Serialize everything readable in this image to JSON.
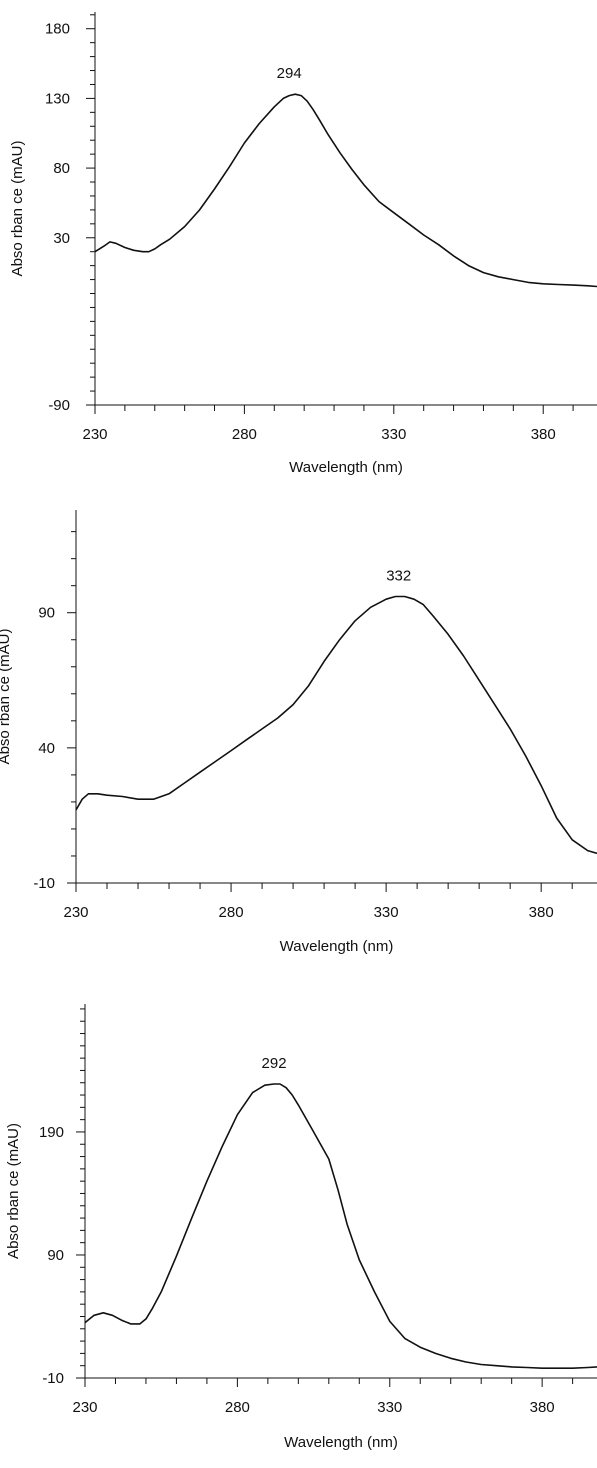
{
  "chart_data": [
    {
      "type": "line",
      "xlabel": "Wavelength (nm)",
      "ylabel": "Abso rban ce (mAU)",
      "xlim": [
        230,
        398
      ],
      "ylim": [
        -90,
        192
      ],
      "x_ticks": [
        "230",
        "280",
        "330",
        "380"
      ],
      "y_ticks": [
        "-90",
        "30",
        "80",
        "130",
        "180"
      ],
      "peak_label": "294",
      "peak_x": 297,
      "grid": false,
      "line_color": "#111111",
      "series": [
        {
          "x": [
            230,
            233,
            235,
            237,
            240,
            243,
            246,
            248,
            250,
            252,
            255,
            260,
            265,
            270,
            275,
            280,
            285,
            290,
            293,
            295,
            297,
            299,
            301,
            303,
            305,
            308,
            312,
            316,
            320,
            325,
            330,
            335,
            340,
            345,
            350,
            355,
            360,
            365,
            370,
            375,
            380,
            385,
            390,
            395,
            398
          ],
          "y": [
            20,
            24,
            27,
            26,
            23,
            21,
            20,
            20,
            22,
            25,
            29,
            38,
            50,
            65,
            81,
            98,
            112,
            124,
            130,
            132,
            133,
            132,
            128,
            122,
            115,
            104,
            91,
            79,
            68,
            56,
            48,
            40,
            32,
            25,
            17,
            10,
            5,
            2,
            0,
            -2,
            -3,
            -3.5,
            -4,
            -4.5,
            -5
          ]
        }
      ]
    },
    {
      "type": "line",
      "xlabel": "Wavelength (nm)",
      "ylabel": "Abso rban ce (mAU)",
      "xlim": [
        230,
        398
      ],
      "ylim": [
        -10,
        128
      ],
      "x_ticks": [
        "230",
        "280",
        "330",
        "380"
      ],
      "y_ticks": [
        "-10",
        "40",
        "90"
      ],
      "peak_label": "332",
      "peak_x": 336,
      "grid": false,
      "line_color": "#111111",
      "series": [
        {
          "x": [
            230,
            232,
            234,
            237,
            240,
            245,
            250,
            255,
            260,
            265,
            270,
            275,
            280,
            285,
            290,
            295,
            300,
            305,
            310,
            315,
            320,
            325,
            330,
            333,
            336,
            339,
            342,
            345,
            350,
            355,
            360,
            365,
            370,
            375,
            380,
            385,
            390,
            395,
            398
          ],
          "y": [
            17,
            21,
            23,
            23,
            22.5,
            22,
            21,
            21,
            23,
            27,
            31,
            35,
            39,
            43,
            47,
            51,
            56,
            63,
            72,
            80,
            87,
            92,
            95,
            96,
            96,
            95,
            93,
            89,
            82,
            74,
            65,
            56,
            47,
            37,
            26,
            14,
            6,
            2,
            1
          ]
        }
      ]
    },
    {
      "type": "line",
      "xlabel": "Wavelength (nm)",
      "ylabel": "Abso rban ce (mAU)",
      "xlim": [
        230,
        398
      ],
      "ylim": [
        -10,
        294
      ],
      "x_ticks": [
        "230",
        "280",
        "330",
        "380"
      ],
      "y_ticks": [
        "-10",
        "90",
        "190"
      ],
      "peak_label": "292",
      "peak_x": 294,
      "grid": false,
      "line_color": "#111111",
      "series": [
        {
          "x": [
            230,
            233,
            236,
            239,
            242,
            245,
            248,
            250,
            252,
            255,
            260,
            265,
            270,
            275,
            280,
            285,
            289,
            292,
            294,
            296,
            298,
            300,
            305,
            310,
            313,
            316,
            320,
            325,
            330,
            335,
            340,
            345,
            350,
            355,
            360,
            365,
            370,
            375,
            380,
            385,
            390,
            395,
            398
          ],
          "y": [
            35,
            41,
            43,
            41,
            37,
            34,
            34,
            38,
            46,
            60,
            89,
            120,
            150,
            178,
            204,
            222,
            228,
            229,
            229,
            226,
            220,
            212,
            190,
            168,
            143,
            115,
            86,
            60,
            36,
            22,
            15,
            10,
            6,
            3,
            1,
            0,
            -1,
            -1.5,
            -2,
            -2,
            -2,
            -1.5,
            -1
          ]
        }
      ]
    }
  ]
}
